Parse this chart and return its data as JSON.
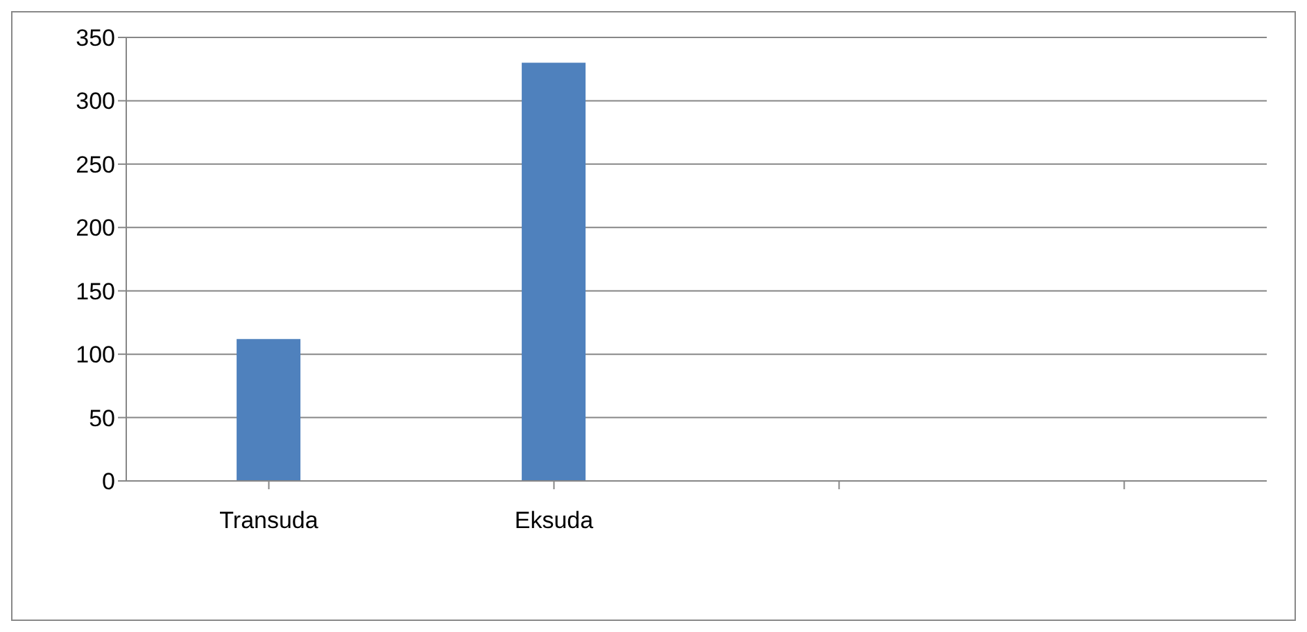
{
  "chart_data": {
    "type": "bar",
    "categories": [
      "Transuda",
      "Eksuda",
      null,
      null
    ],
    "values": [
      112,
      330,
      null,
      null
    ],
    "color": "#4f81bd",
    "ylim": [
      0,
      350
    ],
    "yticks": [
      0,
      50,
      100,
      150,
      200,
      250,
      300,
      350
    ],
    "grid": "y"
  }
}
